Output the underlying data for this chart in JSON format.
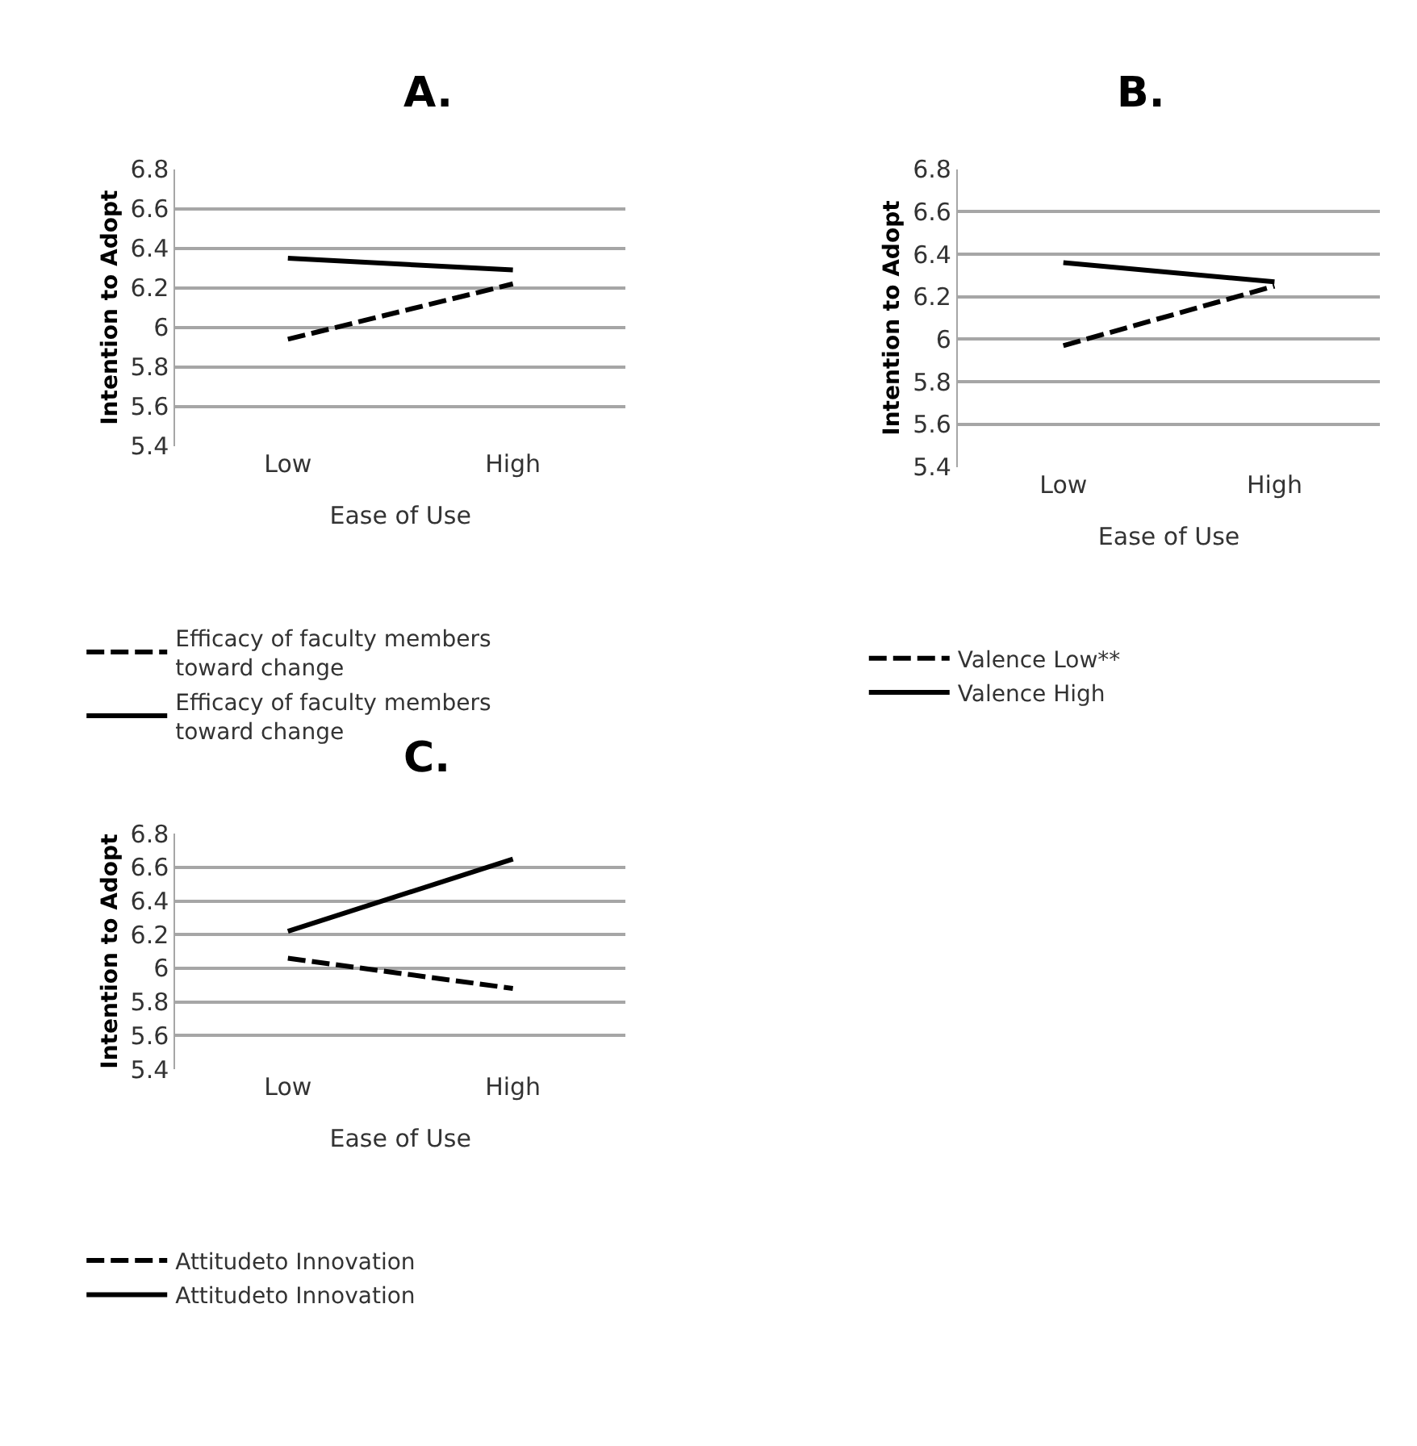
{
  "chart_data": [
    {
      "type": "line",
      "title": "A.",
      "xlabel": "Ease of Use",
      "ylabel": "Intention to Adopt",
      "categories": [
        "Low",
        "High"
      ],
      "series": [
        {
          "name": "Efficacy of faculty members toward change",
          "color": "#000000",
          "line_style": "dashed",
          "values": [
            5.94,
            6.22
          ]
        },
        {
          "name": "Efficacy of faculty members toward change",
          "color": "#000000",
          "line_style": "solid",
          "values": [
            6.35,
            6.29
          ]
        }
      ],
      "ylim": [
        5.4,
        6.8
      ],
      "yticks": [
        5.4,
        5.6,
        5.8,
        6,
        6.2,
        6.4,
        6.6,
        6.8
      ],
      "grid": "y",
      "legend": "bottom",
      "marker": "none"
    },
    {
      "type": "line",
      "title": "B.",
      "xlabel": "Ease of Use",
      "ylabel": "Intention to Adopt",
      "categories": [
        "Low",
        "High"
      ],
      "series": [
        {
          "name": "Valence Low**",
          "color": "#000000",
          "line_style": "dashed",
          "values": [
            5.97,
            6.25
          ]
        },
        {
          "name": "Valence High",
          "color": "#000000",
          "line_style": "solid",
          "values": [
            6.36,
            6.27
          ]
        }
      ],
      "ylim": [
        5.4,
        6.8
      ],
      "yticks": [
        5.4,
        5.6,
        5.8,
        6,
        6.2,
        6.4,
        6.6,
        6.8
      ],
      "grid": "y",
      "legend": "bottom",
      "marker": "none"
    },
    {
      "type": "line",
      "title": "C.",
      "xlabel": "Ease of Use",
      "ylabel": "Intention to Adopt",
      "categories": [
        "Low",
        "High"
      ],
      "series": [
        {
          "name": "Attitudeto Innovation",
          "color": "#000000",
          "line_style": "dashed",
          "values": [
            6.06,
            5.88
          ]
        },
        {
          "name": "Attitudeto Innovation",
          "color": "#000000",
          "line_style": "solid",
          "values": [
            6.22,
            6.65
          ]
        }
      ],
      "ylim": [
        5.4,
        6.8
      ],
      "yticks": [
        5.4,
        5.6,
        5.8,
        6,
        6.2,
        6.4,
        6.6,
        6.8
      ],
      "grid": "y",
      "legend": "bottom",
      "marker": "none"
    }
  ]
}
